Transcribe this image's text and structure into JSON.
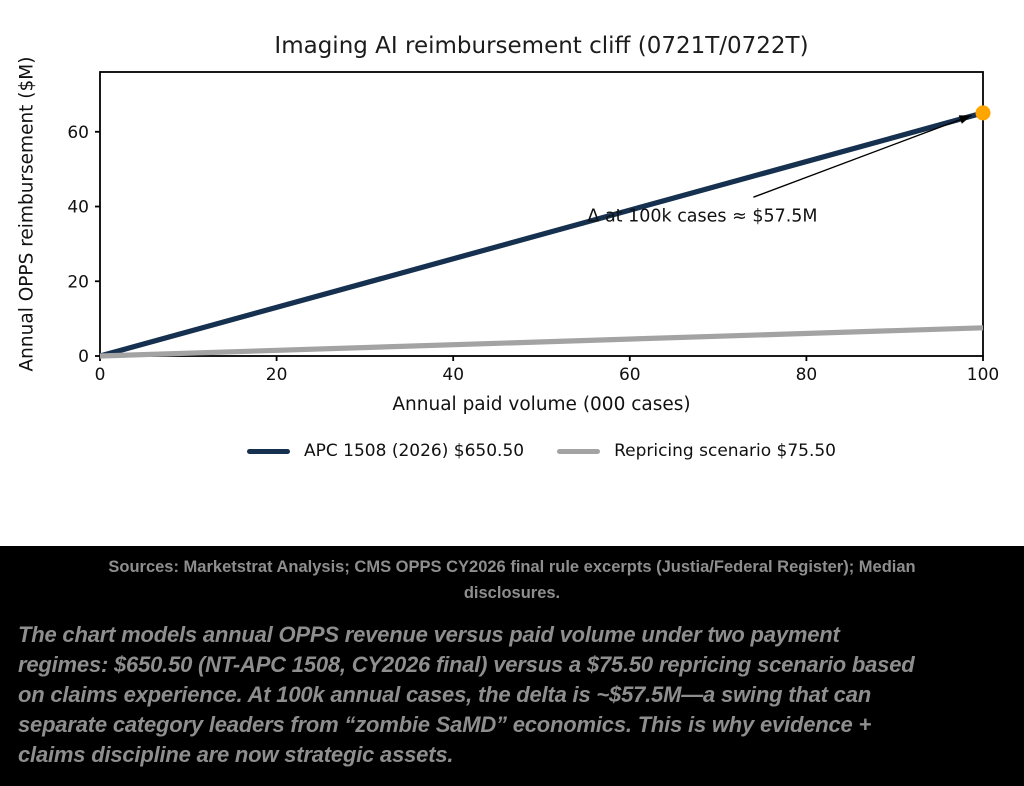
{
  "chart_data": {
    "type": "line",
    "title": "Imaging AI reimbursement cliff (0721T/0722T)",
    "xlabel": "Annual paid volume (000 cases)",
    "ylabel": "Annual OPPS reimbursement ($M)",
    "xlim": [
      0,
      100
    ],
    "ylim": [
      0,
      76
    ],
    "xticks": [
      0,
      20,
      40,
      60,
      80,
      100
    ],
    "yticks": [
      0,
      20,
      40,
      60
    ],
    "grid": false,
    "legend_position": "below-axis",
    "axis_color": "#000000",
    "tick_label_color": "#111111",
    "series": [
      {
        "name": "APC 1508 (2026) $650.50",
        "payment_per_case_usd": 650.5,
        "color": "#16304f",
        "x": [
          0,
          100
        ],
        "y": [
          0,
          65.05
        ]
      },
      {
        "name": "Repricing scenario $75.50",
        "payment_per_case_usd": 75.5,
        "color": "#a3a3a3",
        "x": [
          0,
          100
        ],
        "y": [
          0,
          7.55
        ]
      }
    ],
    "marker": {
      "x": 100,
      "y": 65.05,
      "color": "#ffa500"
    },
    "annotation": {
      "text": "Δ at 100k cases ≈ $57.5M",
      "delta_at_100k_usd_m": 57.5,
      "text_pos": [
        55.2,
        36.0
      ],
      "arrow_start": [
        74.0,
        42.5
      ],
      "arrow_end": [
        98.7,
        64.4
      ]
    }
  },
  "caption": {
    "background": "#000000",
    "text_color": "#8e8e8e",
    "sources_line1": "Sources: Marketstrat Analysis; CMS OPPS CY2026 final rule excerpts (Justia/Federal Register); Median",
    "sources_line2": "disclosures.",
    "body_lines": [
      "The chart models annual OPPS revenue versus paid volume under two payment",
      "regimes: $650.50 (NT-APC 1508, CY2026 final) versus a $75.50 repricing scenario based",
      "on claims experience. At 100k annual cases, the delta is ~$57.5M—a swing that can",
      "separate category leaders from “zombie SaMD” economics. This is why evidence +",
      "claims discipline are now strategic assets."
    ]
  }
}
